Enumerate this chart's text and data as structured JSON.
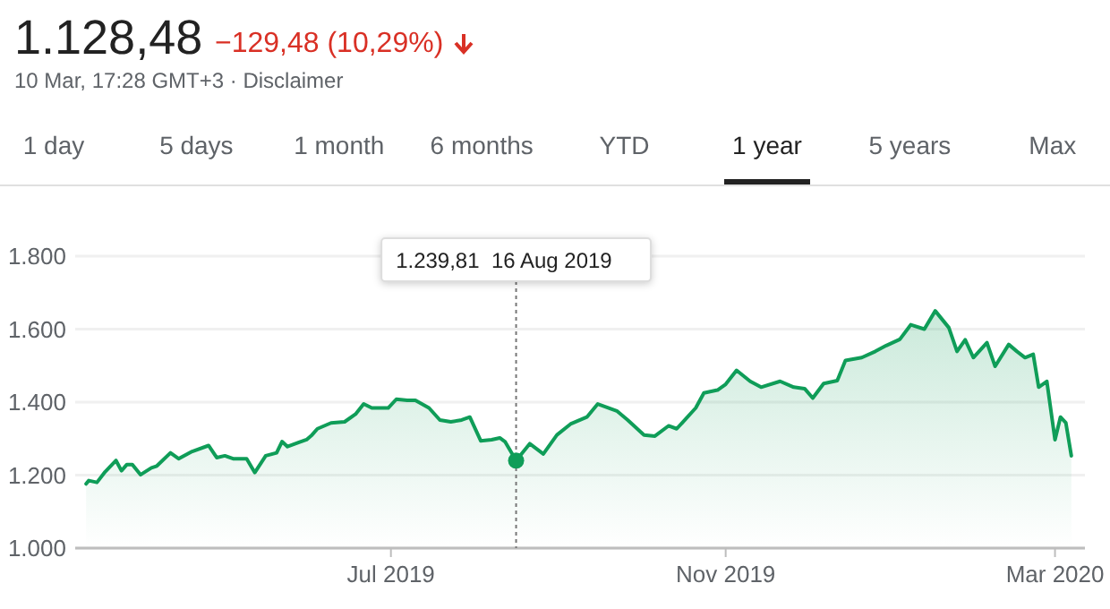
{
  "chart_data": {
    "type": "area",
    "title": "1.128,48",
    "subtitle": "−129,48 (10,29%)",
    "annotations": [
      "10 Mar, 17:28 GMT+3 · Disclaimer",
      "1 day",
      "5 days",
      "1 month",
      "6 months",
      "YTD",
      "1 year",
      "5 years",
      "Max"
    ],
    "ref_lines": [
      {
        "axis": "x",
        "value": "2019-08-16",
        "label": "1.239,81  16 Aug 2019",
        "color": "#777777",
        "line_style": "dashed"
      }
    ],
    "x": [
      "2019-03-11",
      "2019-03-12",
      "2019-03-15",
      "2019-03-18",
      "2019-03-22",
      "2019-03-24",
      "2019-03-26",
      "2019-03-28",
      "2019-03-31",
      "2019-04-04",
      "2019-04-06",
      "2019-04-11",
      "2019-04-14",
      "2019-04-19",
      "2019-04-25",
      "2019-04-28",
      "2019-05-01",
      "2019-05-04",
      "2019-05-09",
      "2019-05-12",
      "2019-05-16",
      "2019-05-20",
      "2019-05-22",
      "2019-05-24",
      "2019-05-28",
      "2019-05-31",
      "2019-06-02",
      "2019-06-04",
      "2019-06-09",
      "2019-06-14",
      "2019-06-18",
      "2019-06-21",
      "2019-06-24",
      "2019-06-30",
      "2019-07-03",
      "2019-07-07",
      "2019-07-10",
      "2019-07-15",
      "2019-07-19",
      "2019-07-23",
      "2019-07-27",
      "2019-07-30",
      "2019-08-03",
      "2019-08-07",
      "2019-08-10",
      "2019-08-12",
      "2019-08-16",
      "2019-08-21",
      "2019-08-26",
      "2019-08-31",
      "2019-09-05",
      "2019-09-11",
      "2019-09-15",
      "2019-09-22",
      "2019-09-26",
      "2019-10-02",
      "2019-10-06",
      "2019-10-11",
      "2019-10-14",
      "2019-10-17",
      "2019-10-21",
      "2019-10-24",
      "2019-10-29",
      "2019-11-01",
      "2019-11-05",
      "2019-11-10",
      "2019-11-14",
      "2019-11-21",
      "2019-11-26",
      "2019-11-30",
      "2019-12-03",
      "2019-12-07",
      "2019-12-12",
      "2019-12-15",
      "2019-12-21",
      "2019-12-26",
      "2019-12-30",
      "2020-01-04",
      "2020-01-08",
      "2020-01-13",
      "2020-01-17",
      "2020-01-22",
      "2020-01-25",
      "2020-01-28",
      "2020-01-31",
      "2020-02-05",
      "2020-02-08",
      "2020-02-13",
      "2020-02-16",
      "2020-02-19",
      "2020-02-22",
      "2020-02-24",
      "2020-02-27",
      "2020-03-01",
      "2020-03-03",
      "2020-03-05",
      "2020-03-07"
    ],
    "series": [
      {
        "color": "#0f9d58",
        "values": [
          1176,
          1185,
          1180,
          1209,
          1240,
          1212,
          1229,
          1229,
          1201,
          1220,
          1225,
          1261,
          1245,
          1265,
          1281,
          1248,
          1253,
          1245,
          1245,
          1207,
          1253,
          1261,
          1292,
          1278,
          1289,
          1297,
          1310,
          1327,
          1343,
          1346,
          1367,
          1395,
          1384,
          1384,
          1408,
          1405,
          1405,
          1384,
          1351,
          1346,
          1351,
          1359,
          1294,
          1297,
          1302,
          1291,
          1239.81,
          1286,
          1258,
          1310,
          1340,
          1359,
          1395,
          1376,
          1351,
          1310,
          1307,
          1335,
          1327,
          1351,
          1384,
          1425,
          1433,
          1449,
          1487,
          1457,
          1441,
          1457,
          1441,
          1437,
          1411,
          1451,
          1459,
          1514,
          1522,
          1539,
          1555,
          1572,
          1612,
          1600,
          1650,
          1604,
          1539,
          1571,
          1522,
          1563,
          1498,
          1558,
          1539,
          1522,
          1531,
          1441,
          1457,
          1297,
          1359,
          1343,
          1253
        ]
      }
    ],
    "xlim": [
      "2019-03-07",
      "2020-03-12"
    ],
    "xticks": [
      {
        "value": "2019-07-01",
        "label": "Jul 2019"
      },
      {
        "value": "2019-11-01",
        "label": "Nov 2019"
      },
      {
        "value": "2020-03-01",
        "label": "Mar 2020"
      }
    ],
    "ylim": [
      1000,
      1800
    ],
    "yticks": [
      {
        "value": 1000,
        "label": "1.000"
      },
      {
        "value": 1200,
        "label": "1.200"
      },
      {
        "value": 1400,
        "label": "1.400"
      },
      {
        "value": 1600,
        "label": "1.600"
      },
      {
        "value": 1800,
        "label": "1.800"
      }
    ],
    "grid": "y"
  }
}
